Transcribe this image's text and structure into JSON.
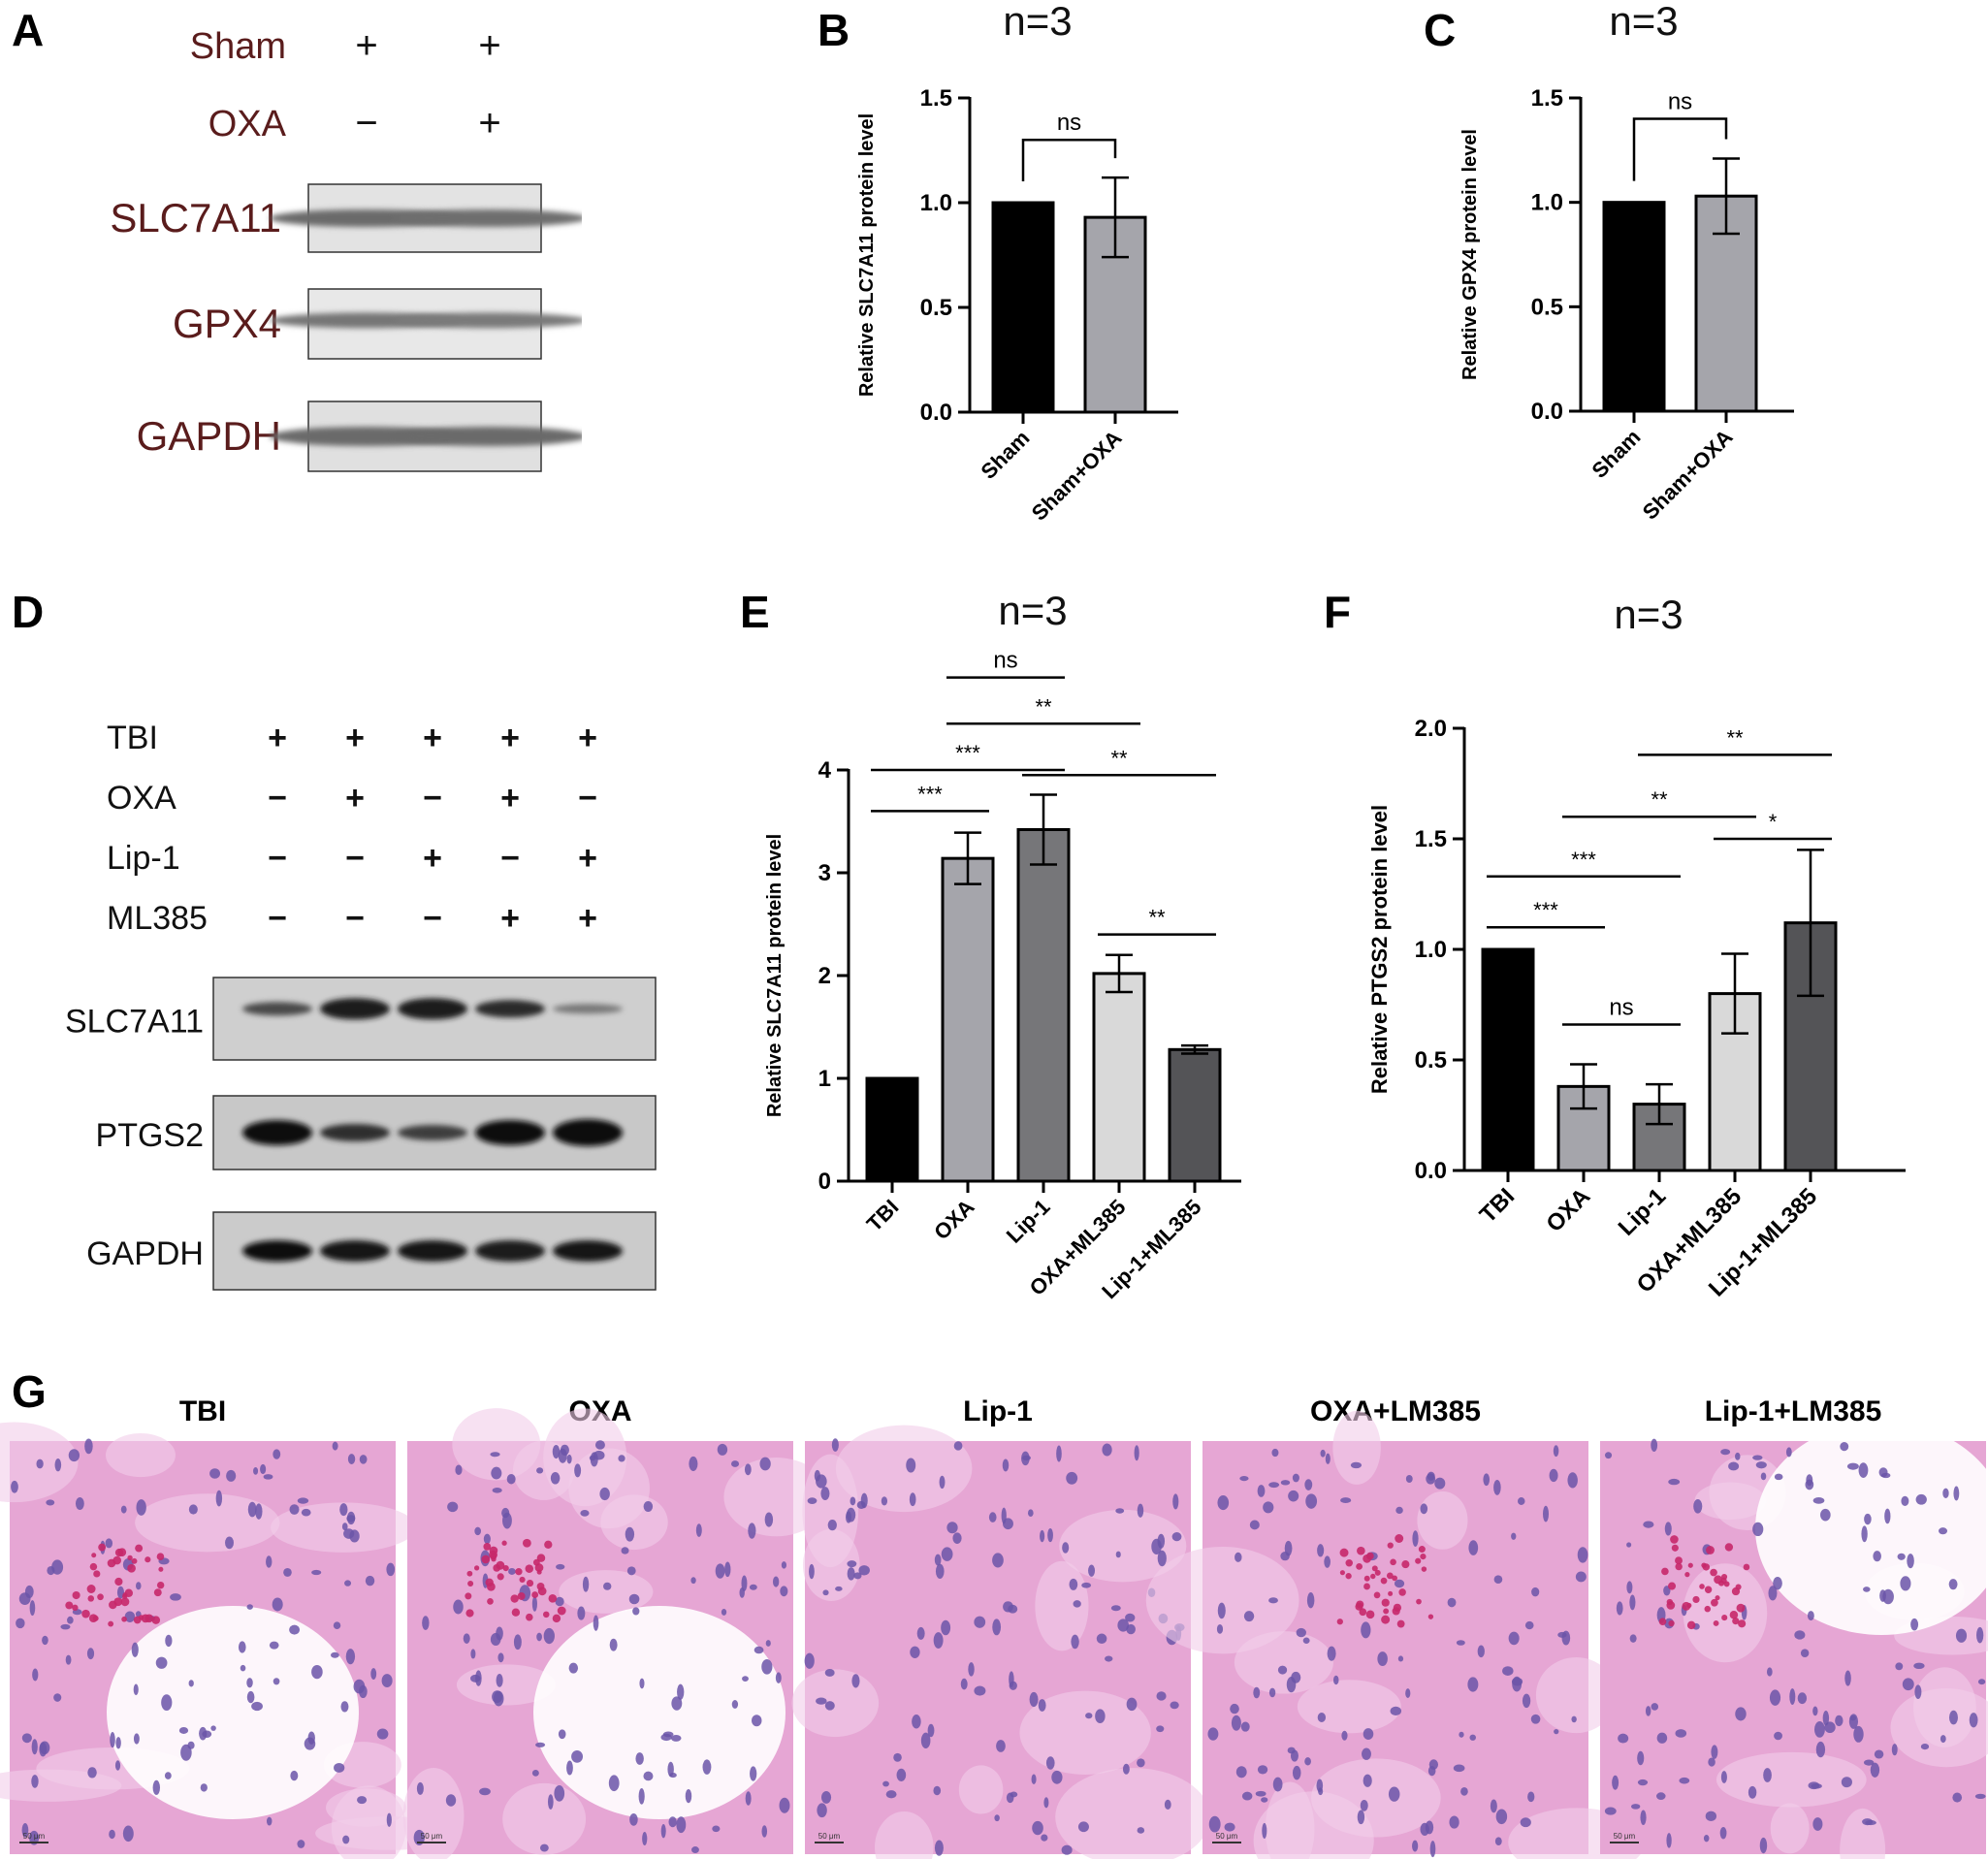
{
  "panels": {
    "A": "A",
    "B": "B",
    "C": "C",
    "D": "D",
    "E": "E",
    "F": "F",
    "G": "G"
  },
  "blot_a": {
    "rows": [
      {
        "label": "Sham",
        "signs": [
          "+",
          "+"
        ]
      },
      {
        "label": "OXA",
        "signs": [
          "−",
          "+"
        ]
      }
    ],
    "bands": [
      "SLC7A11",
      "GPX4",
      "GAPDH"
    ]
  },
  "blot_d": {
    "rows": [
      {
        "label": "TBI",
        "signs": [
          "+",
          "+",
          "+",
          "+",
          "+"
        ]
      },
      {
        "label": "OXA",
        "signs": [
          "−",
          "+",
          "−",
          "+",
          "−"
        ]
      },
      {
        "label": "Lip-1",
        "signs": [
          "−",
          "−",
          "+",
          "−",
          "+"
        ]
      },
      {
        "label": "ML385",
        "signs": [
          "−",
          "−",
          "−",
          "+",
          "+"
        ]
      }
    ],
    "bands": [
      "SLC7A11",
      "PTGS2",
      "GAPDH"
    ]
  },
  "colors": {
    "black": "#000000",
    "gray": "#a5a5ab",
    "darkgray": "#767679",
    "lightgray": "#d9d9d9",
    "charcoal": "#545457",
    "blot_label": "#5a1c1c",
    "he_pink": "#e6a6d4",
    "he_nuclei": "#6b55a8",
    "rbc": "#c6286a"
  },
  "chart_data": [
    {
      "id": "B",
      "type": "bar",
      "title": "n=3",
      "ylabel": "Relative SLC7A11  protein level",
      "categories": [
        "Sham",
        "Sham+OXA"
      ],
      "values": [
        1.0,
        0.93
      ],
      "errors": [
        0,
        0.19
      ],
      "bar_colors": [
        "black",
        "gray"
      ],
      "ylim": [
        0,
        1.5
      ],
      "yticks": [
        0.0,
        0.5,
        1.0,
        1.5
      ],
      "ytick_labels": [
        "0.0",
        "0.5",
        "1.0",
        "1.5"
      ],
      "comparisons": [
        {
          "from": 0,
          "to": 1,
          "label": "ns",
          "y": 1.3
        }
      ]
    },
    {
      "id": "C",
      "type": "bar",
      "title": "n=3",
      "ylabel": "Relative GPX4  protein level",
      "categories": [
        "Sham",
        "Sham+OXA"
      ],
      "values": [
        1.0,
        1.03
      ],
      "errors": [
        0,
        0.18
      ],
      "bar_colors": [
        "black",
        "gray"
      ],
      "ylim": [
        0,
        1.5
      ],
      "yticks": [
        0.0,
        0.5,
        1.0,
        1.5
      ],
      "ytick_labels": [
        "0.0",
        "0.5",
        "1.0",
        "1.5"
      ],
      "comparisons": [
        {
          "from": 0,
          "to": 1,
          "label": "ns",
          "y": 1.4
        }
      ]
    },
    {
      "id": "E",
      "type": "bar",
      "title": "n=3",
      "ylabel": "Relative SLC7A11  protein level",
      "categories": [
        "TBI",
        "OXA",
        "Lip-1",
        "OXA+ML385",
        "Lip-1+ML385"
      ],
      "values": [
        1.0,
        3.14,
        3.42,
        2.02,
        1.28
      ],
      "errors": [
        0,
        0.25,
        0.34,
        0.18,
        0.04
      ],
      "bar_colors": [
        "black",
        "gray",
        "darkgray",
        "lightgray",
        "charcoal"
      ],
      "ylim": [
        0,
        4
      ],
      "yticks": [
        0,
        1,
        2,
        3,
        4
      ],
      "ytick_labels": [
        "0",
        "1",
        "2",
        "3",
        "4"
      ],
      "comparisons": [
        {
          "from": 0,
          "to": 1,
          "label": "***",
          "y": 3.6
        },
        {
          "from": 0,
          "to": 2,
          "label": "***",
          "y": 4.0
        },
        {
          "from": 2,
          "to": 4,
          "label": "**",
          "y": 3.95
        },
        {
          "from": 3,
          "to": 4,
          "label": "**",
          "y": 2.4
        },
        {
          "from": 1,
          "to": 3,
          "label": "**",
          "y": 4.45
        },
        {
          "from": 1,
          "to": 2,
          "label": "ns",
          "y": 4.9
        }
      ]
    },
    {
      "id": "F",
      "type": "bar",
      "title": "n=3",
      "ylabel": "Relative PTGS2  protein level",
      "categories": [
        "TBI",
        "OXA",
        "Lip-1",
        "OXA+ML385",
        "Lip-1+ML385"
      ],
      "values": [
        1.0,
        0.38,
        0.3,
        0.8,
        1.12
      ],
      "errors": [
        0,
        0.1,
        0.09,
        0.18,
        0.33
      ],
      "bar_colors": [
        "black",
        "gray",
        "darkgray",
        "lightgray",
        "charcoal"
      ],
      "ylim": [
        0,
        2.0
      ],
      "yticks": [
        0.0,
        0.5,
        1.0,
        1.5,
        2.0
      ],
      "ytick_labels": [
        "0.0",
        "0.5",
        "1.0",
        "1.5",
        "2.0"
      ],
      "comparisons": [
        {
          "from": 0,
          "to": 1,
          "label": "***",
          "y": 1.1
        },
        {
          "from": 0,
          "to": 2,
          "label": "***",
          "y": 1.33
        },
        {
          "from": 1,
          "to": 2,
          "label": "ns",
          "y": 0.66
        },
        {
          "from": 1,
          "to": 3,
          "label": "**",
          "y": 1.6
        },
        {
          "from": 3,
          "to": 4,
          "label": "*",
          "y": 1.5
        },
        {
          "from": 2,
          "to": 4,
          "label": "**",
          "y": 1.88
        }
      ]
    }
  ],
  "histology": {
    "titles": [
      "TBI",
      "OXA",
      "Lip-1",
      "OXA+LM385",
      "Lip-1+LM385"
    ],
    "scale_label": "50 μm"
  }
}
